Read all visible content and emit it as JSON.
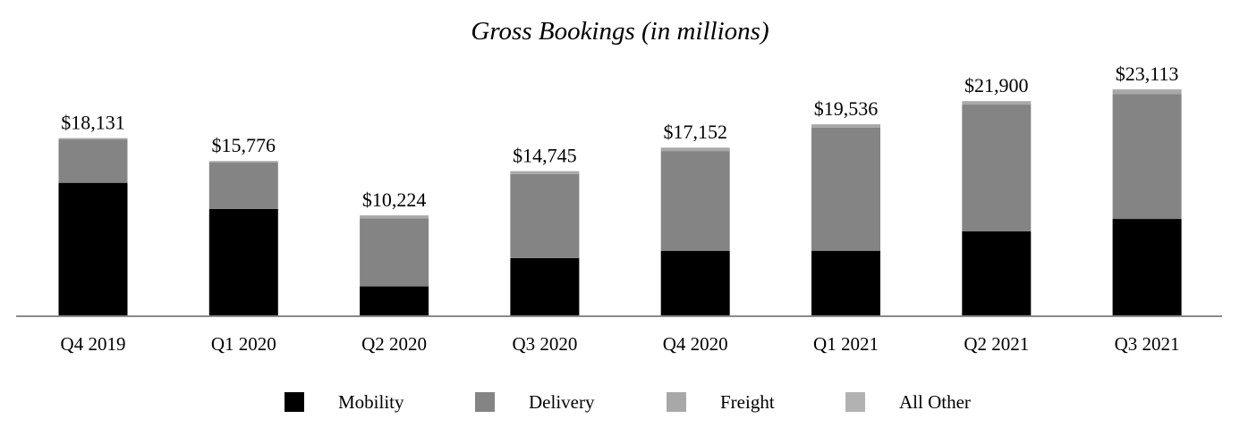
{
  "chart_data": {
    "type": "bar",
    "stacked": true,
    "title": "Gross Bookings (in millions)",
    "xlabel": "",
    "ylabel": "",
    "ylim": [
      0,
      25000
    ],
    "grid": false,
    "legend_position": "bottom",
    "categories": [
      "Q4 2019",
      "Q1 2020",
      "Q2 2020",
      "Q3 2020",
      "Q4 2020",
      "Q1 2021",
      "Q2 2021",
      "Q3 2021"
    ],
    "totals": [
      18131,
      15776,
      10224,
      14745,
      17152,
      19536,
      21900,
      23113
    ],
    "total_labels": [
      "$18,131",
      "$15,776",
      "$10,224",
      "$14,745",
      "$17,152",
      "$19,536",
      "$21,900",
      "$23,113"
    ],
    "series": [
      {
        "name": "Mobility",
        "color": "#000000",
        "values": [
          13544,
          10880,
          2960,
          5850,
          6600,
          6600,
          8580,
          9855
        ]
      },
      {
        "name": "Delivery",
        "color": "#848484",
        "values": [
          4436,
          4730,
          6960,
          8600,
          10190,
          12600,
          12960,
          12740
        ]
      },
      {
        "name": "Freight",
        "color": "#a8a8a8",
        "values": [
          121,
          136,
          264,
          255,
          322,
          296,
          320,
          468
        ]
      },
      {
        "name": "All Other",
        "color": "#b2b2b2",
        "values": [
          30,
          30,
          40,
          40,
          40,
          40,
          40,
          50
        ]
      }
    ]
  }
}
